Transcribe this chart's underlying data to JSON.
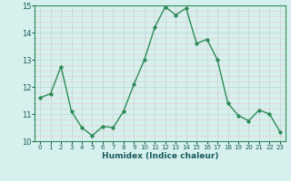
{
  "x": [
    0,
    1,
    2,
    3,
    4,
    5,
    6,
    7,
    8,
    9,
    10,
    11,
    12,
    13,
    14,
    15,
    16,
    17,
    18,
    19,
    20,
    21,
    22,
    23
  ],
  "y": [
    11.6,
    11.75,
    12.75,
    11.1,
    10.5,
    10.2,
    10.55,
    10.5,
    11.1,
    12.1,
    13.0,
    14.2,
    14.95,
    14.65,
    14.9,
    13.6,
    13.75,
    13.0,
    11.4,
    10.95,
    10.75,
    11.15,
    11.0,
    10.35
  ],
  "line_color": "#2E8B57",
  "marker": "D",
  "marker_size": 1.8,
  "bg_color": "#D6F0EE",
  "xlabel": "Humidex (Indice chaleur)",
  "xlabel_color": "#1A5C5C",
  "tick_color": "#1A5C5C",
  "xlim": [
    -0.5,
    23.5
  ],
  "ylim": [
    10,
    15
  ],
  "yticks": [
    10,
    11,
    12,
    13,
    14,
    15
  ],
  "xticks": [
    0,
    1,
    2,
    3,
    4,
    5,
    6,
    7,
    8,
    9,
    10,
    11,
    12,
    13,
    14,
    15,
    16,
    17,
    18,
    19,
    20,
    21,
    22,
    23
  ],
  "line_width": 1.0,
  "major_grid_color": "#C8D8D8",
  "minor_grid_color": "#E8C8C8",
  "spine_color": "#2E8B57"
}
